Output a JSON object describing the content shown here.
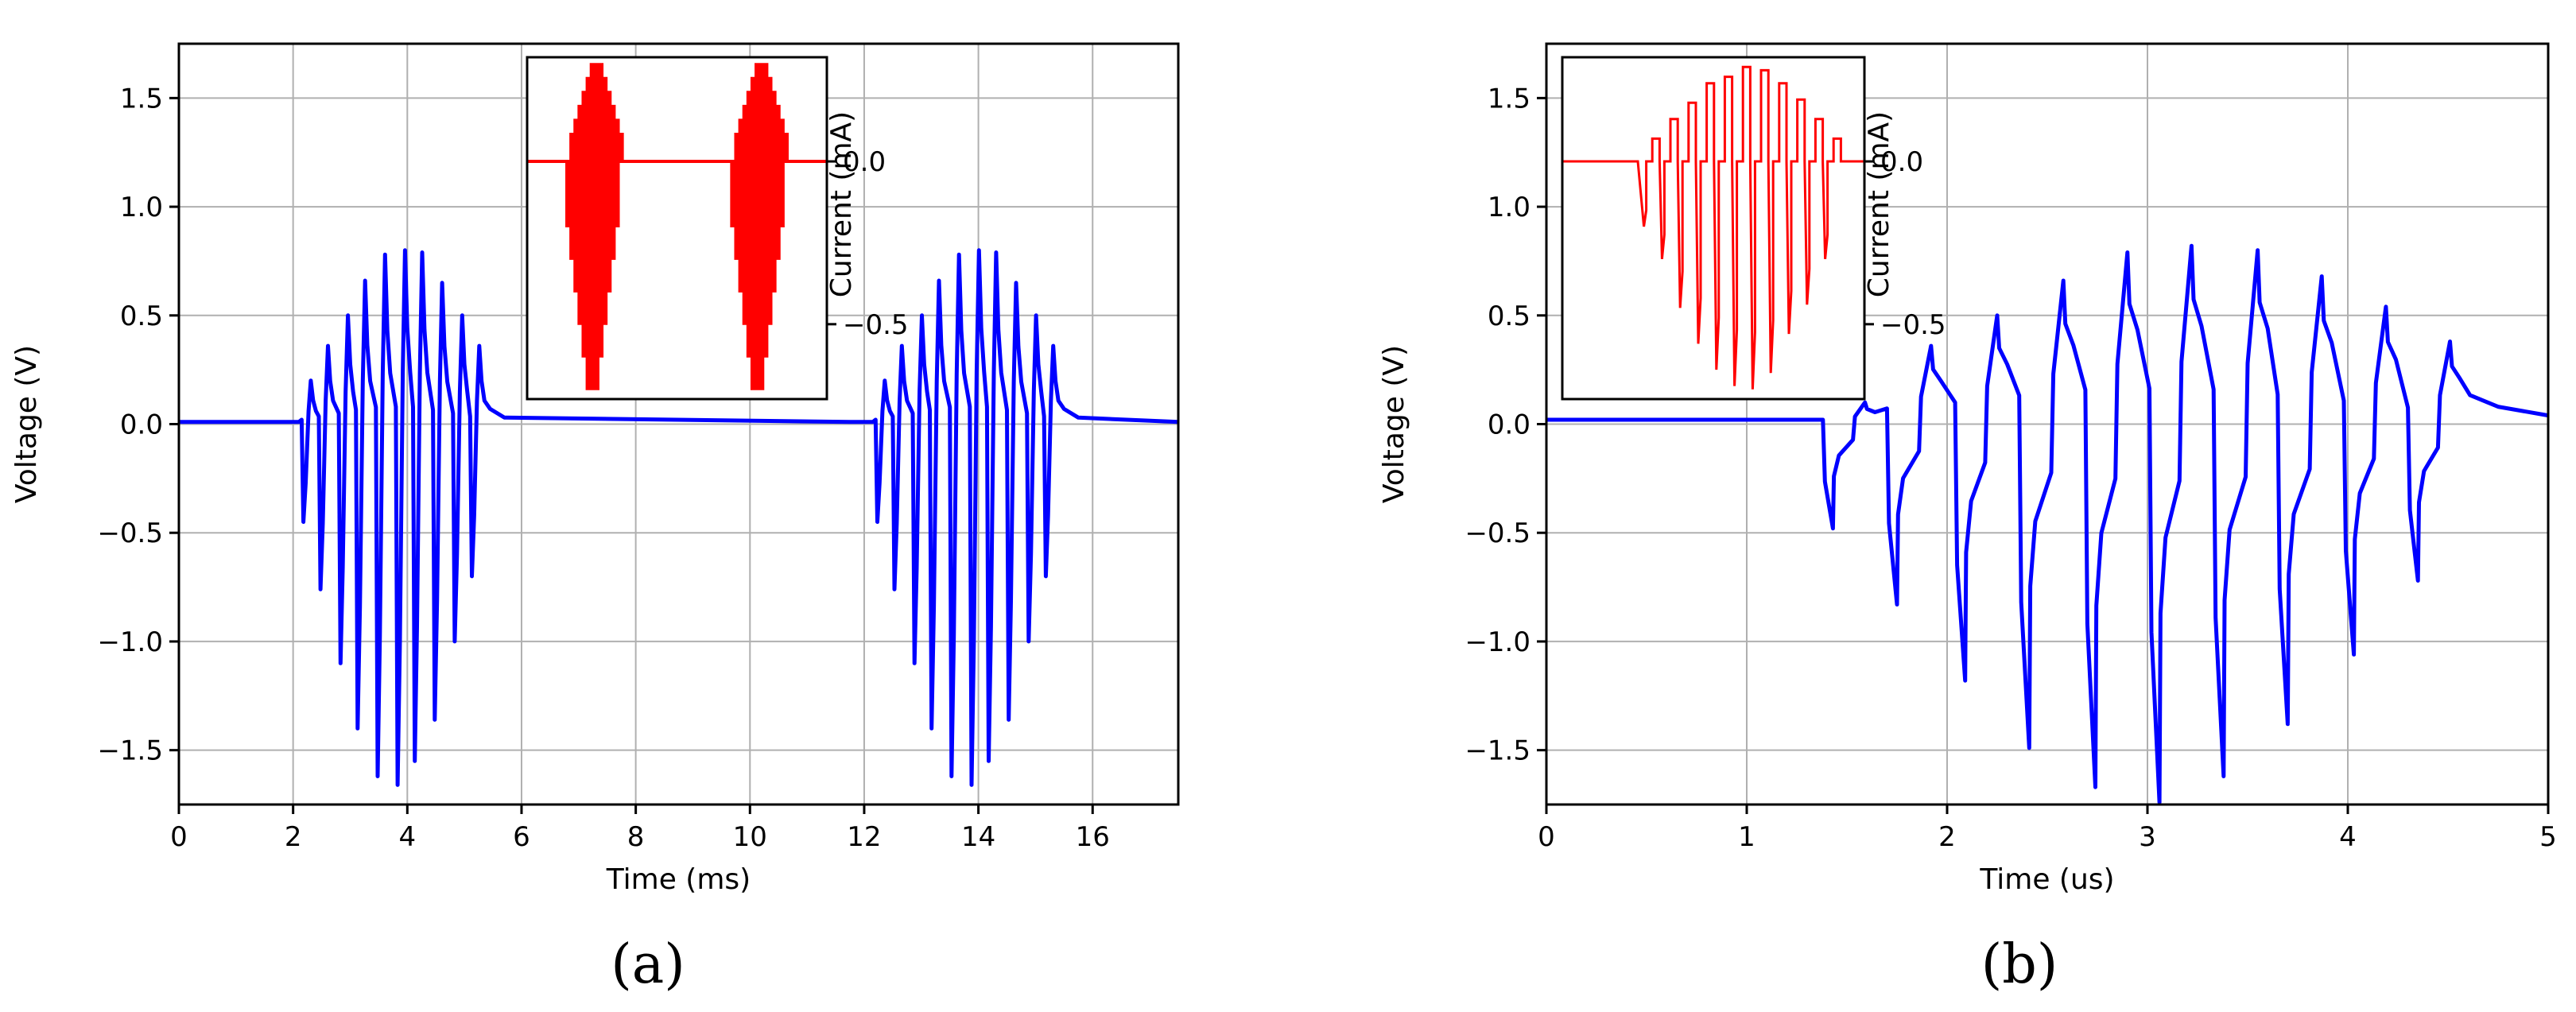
{
  "chart_data": [
    {
      "type": "line",
      "panel_label": "(a)",
      "xlabel": "Time (ms)",
      "ylabel": "Voltage (V)",
      "xlim": [
        0,
        17.5
      ],
      "ylim": [
        -1.75,
        1.75
      ],
      "x_ticks": [
        0,
        2,
        4,
        6,
        8,
        10,
        12,
        14,
        16
      ],
      "x_tick_labels": [
        "0",
        "2",
        "4",
        "6",
        "8",
        "10",
        "12",
        "14",
        "16"
      ],
      "y_ticks": [
        -1.5,
        -1.0,
        -0.5,
        0.0,
        0.5,
        1.0,
        1.5
      ],
      "y_tick_labels": [
        "−1.5",
        "−1.0",
        "−0.5",
        "0.0",
        "0.5",
        "1.0",
        "1.5"
      ],
      "grid": true,
      "series": [
        {
          "color": "#0000ff",
          "baseline": 0.01,
          "tail_level": 0.02,
          "bursts": [
            {
              "pulses": [
                {
                  "t": 2.15,
                  "min": -0.45,
                  "max": 0.2
                },
                {
                  "t": 2.45,
                  "min": -0.76,
                  "max": 0.36
                },
                {
                  "t": 2.8,
                  "min": -1.1,
                  "max": 0.5
                },
                {
                  "t": 3.1,
                  "min": -1.4,
                  "max": 0.66
                },
                {
                  "t": 3.45,
                  "min": -1.62,
                  "max": 0.78
                },
                {
                  "t": 3.8,
                  "min": -1.66,
                  "max": 0.8
                },
                {
                  "t": 4.1,
                  "min": -1.55,
                  "max": 0.79
                },
                {
                  "t": 4.45,
                  "min": -1.36,
                  "max": 0.65
                },
                {
                  "t": 4.8,
                  "min": -1.0,
                  "max": 0.5
                },
                {
                  "t": 5.1,
                  "min": -0.7,
                  "max": 0.36
                }
              ]
            },
            {
              "pulses": [
                {
                  "t": 12.2,
                  "min": -0.45,
                  "max": 0.2
                },
                {
                  "t": 12.5,
                  "min": -0.76,
                  "max": 0.36
                },
                {
                  "t": 12.85,
                  "min": -1.1,
                  "max": 0.5
                },
                {
                  "t": 13.15,
                  "min": -1.4,
                  "max": 0.66
                },
                {
                  "t": 13.5,
                  "min": -1.62,
                  "max": 0.78
                },
                {
                  "t": 13.85,
                  "min": -1.66,
                  "max": 0.8
                },
                {
                  "t": 14.15,
                  "min": -1.55,
                  "max": 0.79
                },
                {
                  "t": 14.5,
                  "min": -1.36,
                  "max": 0.65
                },
                {
                  "t": 14.85,
                  "min": -1.0,
                  "max": 0.5
                },
                {
                  "t": 15.15,
                  "min": -0.7,
                  "max": 0.36
                }
              ]
            }
          ]
        }
      ],
      "inset": {
        "ylabel": "Current (mA)",
        "y_ticks": [
          0.0,
          -0.5
        ],
        "y_tick_labels": [
          "0.0",
          "−0.5"
        ],
        "ylim": [
          -0.73,
          0.32
        ],
        "color": "#ff0000",
        "envelopes": [
          {
            "x_start": 0.13,
            "x_end": 0.32,
            "peak_max": 0.3,
            "peak_min": -0.7
          },
          {
            "x_start": 0.68,
            "x_end": 0.87,
            "peak_max": 0.3,
            "peak_min": -0.7
          }
        ]
      }
    },
    {
      "type": "line",
      "panel_label": "(b)",
      "xlabel": "Time (us)",
      "ylabel": "Voltage (V)",
      "xlim": [
        0,
        5
      ],
      "ylim": [
        -1.75,
        1.75
      ],
      "x_ticks": [
        0,
        1,
        2,
        3,
        4,
        5
      ],
      "x_tick_labels": [
        "0",
        "1",
        "2",
        "3",
        "4",
        "5"
      ],
      "y_ticks": [
        -1.5,
        -1.0,
        -0.5,
        0.0,
        0.5,
        1.0,
        1.5
      ],
      "y_tick_labels": [
        "−1.5",
        "−1.0",
        "−0.5",
        "0.0",
        "0.5",
        "1.0",
        "1.5"
      ],
      "grid": true,
      "series": [
        {
          "color": "#0000ff",
          "baseline": 0.02,
          "tail_level": 0.04,
          "pulses": [
            {
              "t_neg": 1.38,
              "t_pos": 1.54,
              "min": -0.48,
              "max": 0.1
            },
            {
              "t_neg": 1.7,
              "t_pos": 1.87,
              "min": -0.83,
              "max": 0.36
            },
            {
              "t_neg": 2.04,
              "t_pos": 2.2,
              "min": -1.18,
              "max": 0.5
            },
            {
              "t_neg": 2.36,
              "t_pos": 2.53,
              "min": -1.49,
              "max": 0.66
            },
            {
              "t_neg": 2.69,
              "t_pos": 2.85,
              "min": -1.67,
              "max": 0.79
            },
            {
              "t_neg": 3.01,
              "t_pos": 3.17,
              "min": -1.74,
              "max": 0.82
            },
            {
              "t_neg": 3.33,
              "t_pos": 3.5,
              "min": -1.62,
              "max": 0.8
            },
            {
              "t_neg": 3.65,
              "t_pos": 3.82,
              "min": -1.38,
              "max": 0.68
            },
            {
              "t_neg": 3.98,
              "t_pos": 4.14,
              "min": -1.06,
              "max": 0.54
            },
            {
              "t_neg": 4.3,
              "t_pos": 4.46,
              "min": -0.72,
              "max": 0.38
            }
          ]
        }
      ],
      "inset": {
        "ylabel": "Current (mA)",
        "y_ticks": [
          0.0,
          -0.5
        ],
        "y_tick_labels": [
          "0.0",
          "−0.5"
        ],
        "ylim": [
          -0.73,
          0.32
        ],
        "color": "#ff0000",
        "pulses": [
          {
            "x": 0.27,
            "max": 0.07,
            "min": -0.2
          },
          {
            "x": 0.33,
            "max": 0.13,
            "min": -0.3
          },
          {
            "x": 0.39,
            "max": 0.18,
            "min": -0.45
          },
          {
            "x": 0.45,
            "max": 0.24,
            "min": -0.56
          },
          {
            "x": 0.51,
            "max": 0.26,
            "min": -0.64
          },
          {
            "x": 0.57,
            "max": 0.29,
            "min": -0.69
          },
          {
            "x": 0.63,
            "max": 0.28,
            "min": -0.7
          },
          {
            "x": 0.69,
            "max": 0.24,
            "min": -0.65
          },
          {
            "x": 0.75,
            "max": 0.19,
            "min": -0.53
          },
          {
            "x": 0.81,
            "max": 0.13,
            "min": -0.44
          },
          {
            "x": 0.87,
            "max": 0.07,
            "min": -0.3
          }
        ]
      }
    }
  ]
}
